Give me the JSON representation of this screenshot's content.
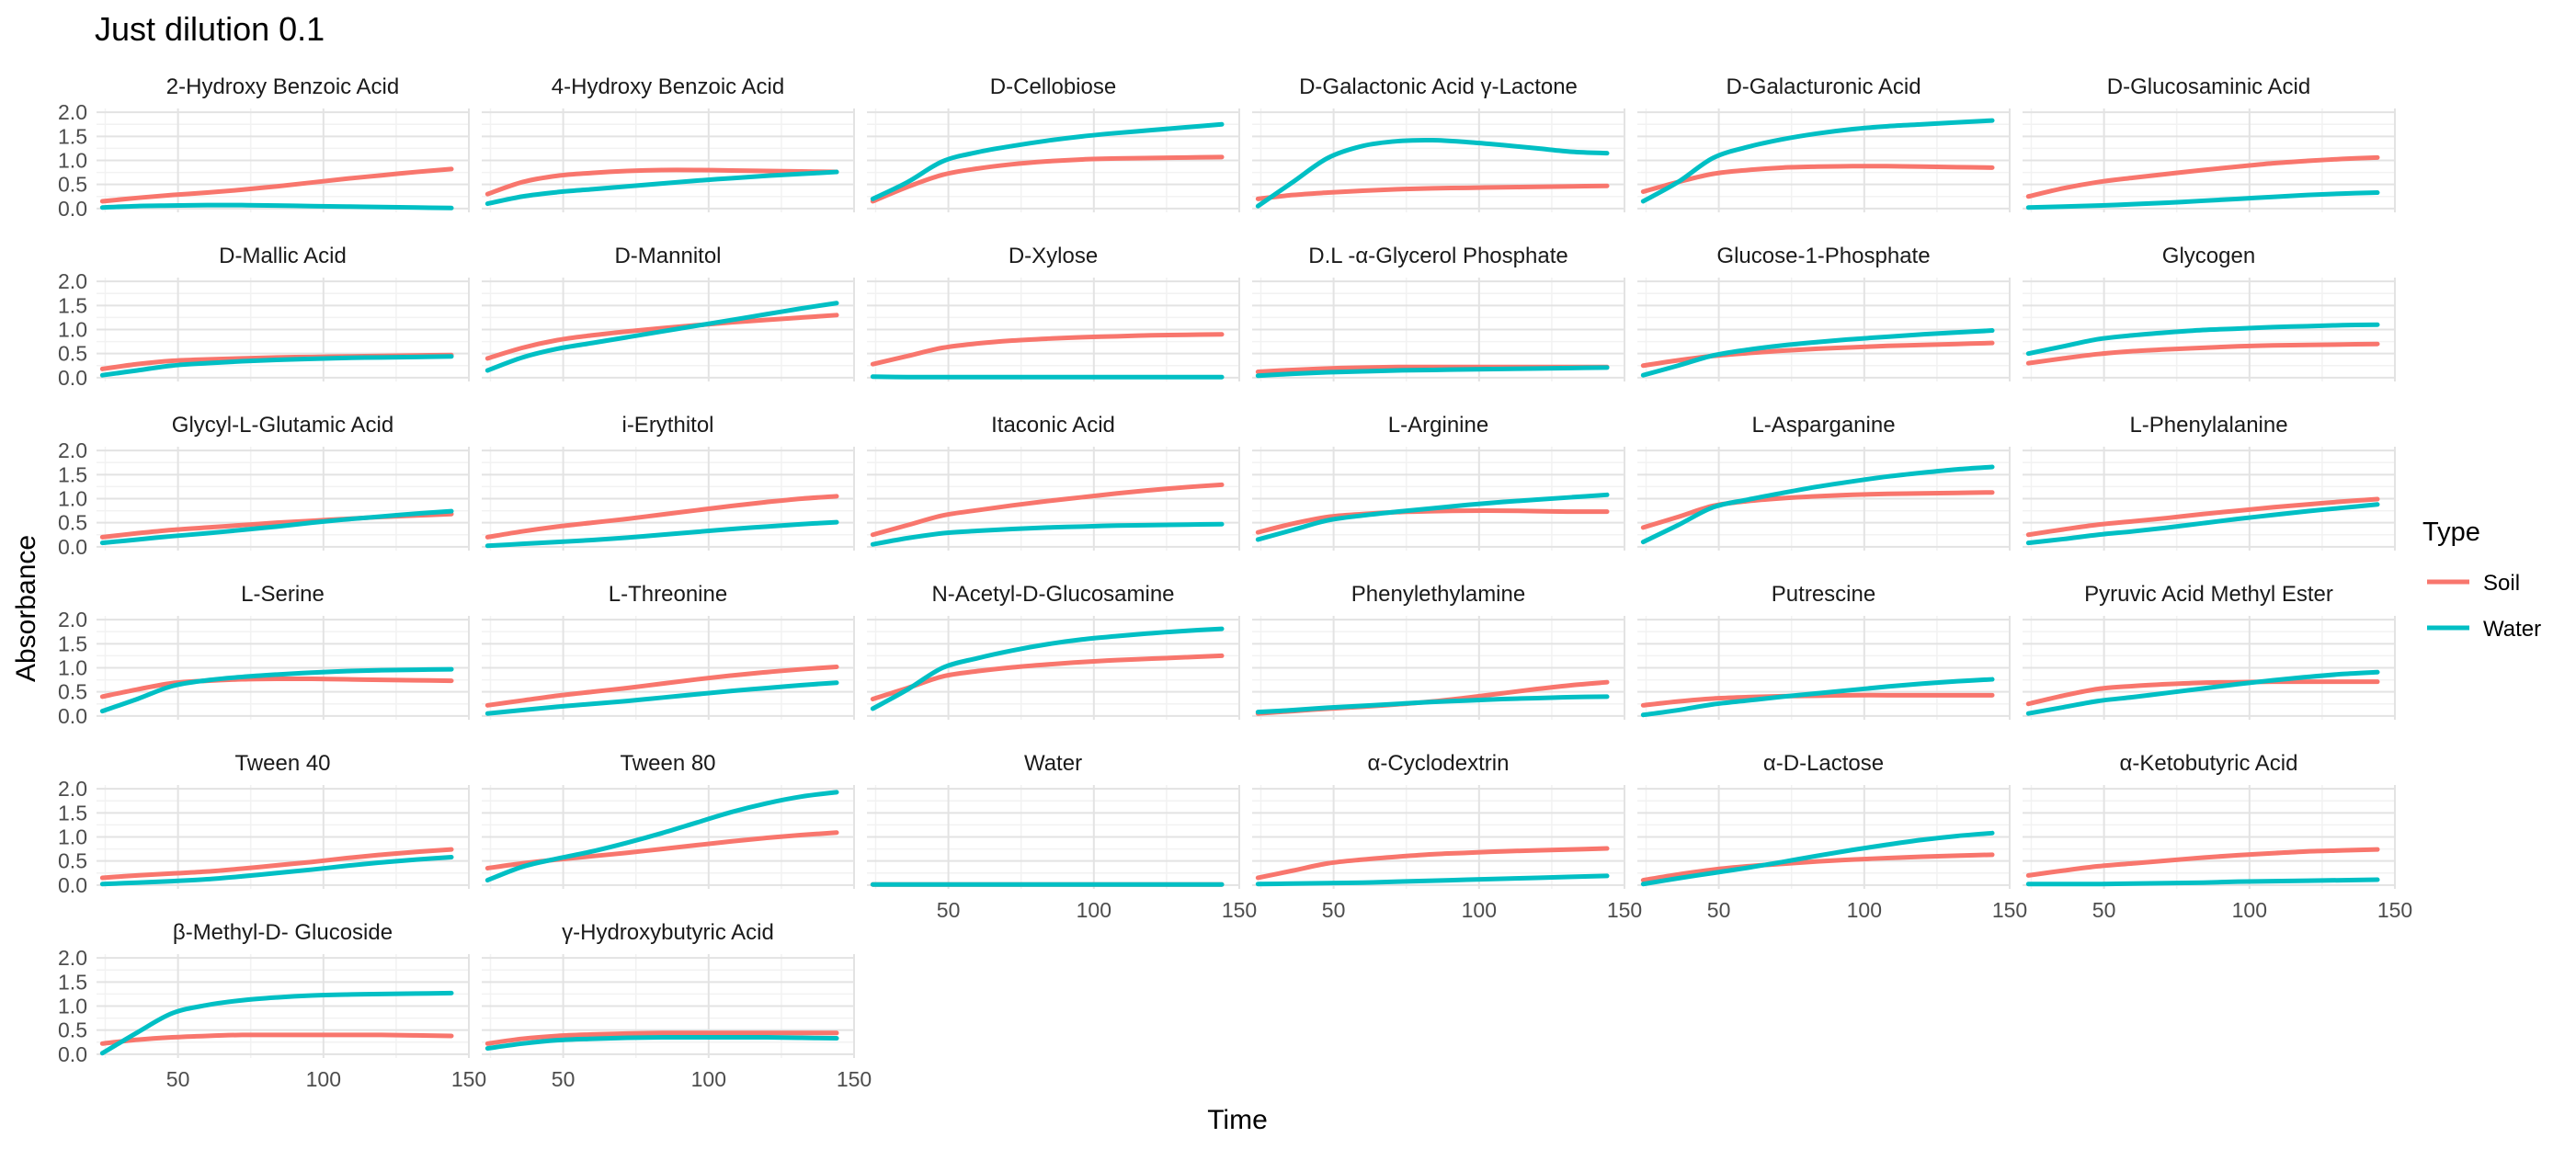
{
  "chart_data": {
    "type": "line",
    "title": "Just dilution 0.1",
    "xlabel": "Time",
    "ylabel": "Absorbance",
    "xlim": [
      22,
      150
    ],
    "ylim": [
      -0.08,
      2.08
    ],
    "x_ticks": [
      50,
      100,
      150
    ],
    "y_ticks": [
      0.0,
      0.5,
      1.0,
      1.5,
      2.0
    ],
    "x_tick_labels": [
      "50",
      "100",
      "150"
    ],
    "y_tick_labels": [
      "0.0",
      "0.5",
      "1.0",
      "1.5",
      "2.0"
    ],
    "x_points": [
      24,
      36,
      48,
      60,
      72,
      84,
      96,
      108,
      120,
      132,
      144
    ],
    "legend": {
      "title": "Type",
      "placement": "right",
      "entries": [
        {
          "name": "Soil",
          "color": "#F8766D"
        },
        {
          "name": "Water",
          "color": "#00BFC4"
        }
      ]
    },
    "grid": true,
    "panels": [
      {
        "title": "2-Hydroxy Benzoic Acid",
        "soil": [
          0.15,
          0.22,
          0.28,
          0.33,
          0.39,
          0.46,
          0.54,
          0.62,
          0.69,
          0.76,
          0.82
        ],
        "water": [
          0.02,
          0.05,
          0.06,
          0.07,
          0.07,
          0.06,
          0.05,
          0.04,
          0.03,
          0.02,
          0.01
        ]
      },
      {
        "title": "4-Hydroxy Benzoic Acid",
        "soil": [
          0.3,
          0.55,
          0.68,
          0.74,
          0.78,
          0.8,
          0.8,
          0.79,
          0.78,
          0.77,
          0.76
        ],
        "water": [
          0.1,
          0.25,
          0.34,
          0.4,
          0.46,
          0.52,
          0.58,
          0.63,
          0.68,
          0.72,
          0.76
        ]
      },
      {
        "title": "D-Cellobiose",
        "soil": [
          0.15,
          0.45,
          0.7,
          0.83,
          0.92,
          0.98,
          1.02,
          1.04,
          1.05,
          1.06,
          1.07
        ],
        "water": [
          0.2,
          0.55,
          0.98,
          1.17,
          1.3,
          1.41,
          1.5,
          1.57,
          1.63,
          1.69,
          1.75
        ]
      },
      {
        "title": "D-Galactonic Acid γ-Lactone",
        "soil": [
          0.2,
          0.28,
          0.33,
          0.37,
          0.4,
          0.42,
          0.43,
          0.44,
          0.45,
          0.46,
          0.47
        ],
        "water": [
          0.05,
          0.55,
          1.05,
          1.3,
          1.4,
          1.42,
          1.38,
          1.32,
          1.25,
          1.18,
          1.15
        ]
      },
      {
        "title": "D-Galacturonic Acid",
        "soil": [
          0.35,
          0.55,
          0.72,
          0.8,
          0.85,
          0.87,
          0.88,
          0.88,
          0.87,
          0.86,
          0.85
        ],
        "water": [
          0.15,
          0.55,
          1.05,
          1.28,
          1.44,
          1.56,
          1.65,
          1.71,
          1.75,
          1.79,
          1.83
        ]
      },
      {
        "title": "D-Glucosaminic Acid",
        "soil": [
          0.25,
          0.42,
          0.55,
          0.64,
          0.72,
          0.8,
          0.87,
          0.94,
          0.99,
          1.03,
          1.06
        ],
        "water": [
          0.02,
          0.04,
          0.06,
          0.09,
          0.12,
          0.16,
          0.2,
          0.24,
          0.28,
          0.31,
          0.33
        ]
      },
      {
        "title": "D-Mallic Acid",
        "soil": [
          0.18,
          0.28,
          0.35,
          0.38,
          0.4,
          0.42,
          0.43,
          0.44,
          0.45,
          0.46,
          0.47
        ],
        "water": [
          0.05,
          0.15,
          0.25,
          0.3,
          0.34,
          0.37,
          0.39,
          0.41,
          0.42,
          0.43,
          0.44
        ]
      },
      {
        "title": "D-Mannitol",
        "soil": [
          0.4,
          0.62,
          0.78,
          0.88,
          0.96,
          1.03,
          1.09,
          1.15,
          1.2,
          1.25,
          1.3
        ],
        "water": [
          0.15,
          0.42,
          0.6,
          0.72,
          0.84,
          0.96,
          1.08,
          1.2,
          1.32,
          1.44,
          1.55
        ]
      },
      {
        "title": "D-Xylose",
        "soil": [
          0.28,
          0.45,
          0.62,
          0.71,
          0.77,
          0.81,
          0.84,
          0.86,
          0.88,
          0.89,
          0.9
        ],
        "water": [
          0.02,
          0.01,
          0.01,
          0.01,
          0.01,
          0.01,
          0.01,
          0.01,
          0.01,
          0.01,
          0.01
        ]
      },
      {
        "title": "D.L -α-Glycerol Phosphate",
        "soil": [
          0.12,
          0.16,
          0.19,
          0.21,
          0.22,
          0.22,
          0.22,
          0.22,
          0.22,
          0.22,
          0.22
        ],
        "water": [
          0.04,
          0.08,
          0.11,
          0.13,
          0.15,
          0.16,
          0.17,
          0.18,
          0.19,
          0.2,
          0.21
        ]
      },
      {
        "title": "Glucose-1-Phosphate",
        "soil": [
          0.25,
          0.36,
          0.45,
          0.51,
          0.56,
          0.6,
          0.63,
          0.66,
          0.68,
          0.7,
          0.72
        ],
        "water": [
          0.05,
          0.25,
          0.46,
          0.58,
          0.67,
          0.74,
          0.8,
          0.85,
          0.9,
          0.94,
          0.98
        ]
      },
      {
        "title": "Glycogen",
        "soil": [
          0.3,
          0.4,
          0.49,
          0.55,
          0.59,
          0.62,
          0.65,
          0.67,
          0.68,
          0.69,
          0.7
        ],
        "water": [
          0.5,
          0.65,
          0.8,
          0.88,
          0.94,
          0.99,
          1.02,
          1.05,
          1.07,
          1.09,
          1.1
        ]
      },
      {
        "title": "Glycyl-L-Glutamic Acid",
        "soil": [
          0.2,
          0.28,
          0.35,
          0.4,
          0.45,
          0.5,
          0.54,
          0.58,
          0.62,
          0.65,
          0.68
        ],
        "water": [
          0.08,
          0.15,
          0.22,
          0.28,
          0.35,
          0.42,
          0.5,
          0.57,
          0.63,
          0.69,
          0.74
        ]
      },
      {
        "title": "i-Erythitol",
        "soil": [
          0.2,
          0.32,
          0.42,
          0.5,
          0.58,
          0.67,
          0.76,
          0.85,
          0.93,
          1.0,
          1.05
        ],
        "water": [
          0.02,
          0.06,
          0.1,
          0.14,
          0.19,
          0.25,
          0.31,
          0.37,
          0.42,
          0.47,
          0.51
        ]
      },
      {
        "title": "Itaconic Acid",
        "soil": [
          0.25,
          0.45,
          0.65,
          0.76,
          0.86,
          0.95,
          1.03,
          1.11,
          1.18,
          1.24,
          1.29
        ],
        "water": [
          0.05,
          0.18,
          0.28,
          0.33,
          0.37,
          0.4,
          0.42,
          0.44,
          0.45,
          0.46,
          0.47
        ]
      },
      {
        "title": "L-Arginine",
        "soil": [
          0.3,
          0.48,
          0.62,
          0.68,
          0.72,
          0.74,
          0.75,
          0.75,
          0.74,
          0.73,
          0.73
        ],
        "water": [
          0.15,
          0.35,
          0.55,
          0.65,
          0.73,
          0.8,
          0.87,
          0.93,
          0.98,
          1.03,
          1.08
        ]
      },
      {
        "title": "L-Asparganine",
        "soil": [
          0.4,
          0.62,
          0.85,
          0.95,
          1.01,
          1.05,
          1.08,
          1.1,
          1.11,
          1.12,
          1.13
        ],
        "water": [
          0.1,
          0.45,
          0.82,
          0.98,
          1.12,
          1.25,
          1.36,
          1.46,
          1.54,
          1.61,
          1.66
        ]
      },
      {
        "title": "L-Phenylalanine",
        "soil": [
          0.25,
          0.36,
          0.46,
          0.53,
          0.6,
          0.68,
          0.75,
          0.82,
          0.88,
          0.94,
          0.99
        ],
        "water": [
          0.08,
          0.16,
          0.25,
          0.32,
          0.4,
          0.49,
          0.58,
          0.66,
          0.74,
          0.81,
          0.88
        ]
      },
      {
        "title": "L-Serine",
        "soil": [
          0.4,
          0.55,
          0.68,
          0.73,
          0.76,
          0.77,
          0.77,
          0.76,
          0.75,
          0.74,
          0.73
        ],
        "water": [
          0.1,
          0.35,
          0.62,
          0.74,
          0.81,
          0.86,
          0.9,
          0.93,
          0.95,
          0.96,
          0.97
        ]
      },
      {
        "title": "L-Threonine",
        "soil": [
          0.22,
          0.32,
          0.42,
          0.5,
          0.58,
          0.67,
          0.76,
          0.84,
          0.91,
          0.97,
          1.02
        ],
        "water": [
          0.05,
          0.12,
          0.19,
          0.25,
          0.31,
          0.38,
          0.45,
          0.52,
          0.58,
          0.64,
          0.69
        ]
      },
      {
        "title": "N-Acetyl-D-Glucosamine",
        "soil": [
          0.35,
          0.58,
          0.82,
          0.93,
          1.01,
          1.07,
          1.12,
          1.16,
          1.19,
          1.22,
          1.25
        ],
        "water": [
          0.15,
          0.55,
          1.0,
          1.2,
          1.36,
          1.49,
          1.59,
          1.66,
          1.72,
          1.77,
          1.81
        ]
      },
      {
        "title": "Phenylethylamine",
        "soil": [
          0.05,
          0.1,
          0.15,
          0.19,
          0.24,
          0.3,
          0.38,
          0.47,
          0.56,
          0.64,
          0.7
        ],
        "water": [
          0.08,
          0.12,
          0.17,
          0.21,
          0.25,
          0.29,
          0.32,
          0.35,
          0.37,
          0.39,
          0.4
        ]
      },
      {
        "title": "Putrescine",
        "soil": [
          0.22,
          0.3,
          0.36,
          0.39,
          0.41,
          0.42,
          0.43,
          0.43,
          0.43,
          0.43,
          0.43
        ],
        "water": [
          0.02,
          0.12,
          0.24,
          0.32,
          0.4,
          0.47,
          0.54,
          0.61,
          0.67,
          0.72,
          0.76
        ]
      },
      {
        "title": "Pyruvic Acid Methyl Ester",
        "soil": [
          0.25,
          0.42,
          0.56,
          0.62,
          0.66,
          0.69,
          0.7,
          0.71,
          0.71,
          0.71,
          0.71
        ],
        "water": [
          0.05,
          0.18,
          0.31,
          0.39,
          0.48,
          0.57,
          0.66,
          0.74,
          0.81,
          0.87,
          0.91
        ]
      },
      {
        "title": "Tween 40",
        "soil": [
          0.15,
          0.2,
          0.24,
          0.28,
          0.34,
          0.41,
          0.48,
          0.56,
          0.63,
          0.69,
          0.74
        ],
        "water": [
          0.02,
          0.05,
          0.08,
          0.12,
          0.18,
          0.25,
          0.32,
          0.4,
          0.47,
          0.53,
          0.58
        ]
      },
      {
        "title": "Tween 80",
        "soil": [
          0.35,
          0.45,
          0.53,
          0.6,
          0.67,
          0.75,
          0.83,
          0.91,
          0.98,
          1.04,
          1.09
        ],
        "water": [
          0.1,
          0.38,
          0.55,
          0.7,
          0.88,
          1.08,
          1.3,
          1.52,
          1.7,
          1.84,
          1.93
        ]
      },
      {
        "title": "Water",
        "soil": [
          0.01,
          0.01,
          0.01,
          0.01,
          0.01,
          0.01,
          0.01,
          0.01,
          0.01,
          0.01,
          0.01
        ],
        "water": [
          0.01,
          0.01,
          0.01,
          0.01,
          0.01,
          0.01,
          0.01,
          0.01,
          0.01,
          0.01,
          0.01
        ]
      },
      {
        "title": "α-Cyclodextrin",
        "soil": [
          0.15,
          0.3,
          0.45,
          0.53,
          0.59,
          0.64,
          0.67,
          0.7,
          0.72,
          0.74,
          0.76
        ],
        "water": [
          0.02,
          0.03,
          0.04,
          0.05,
          0.07,
          0.09,
          0.11,
          0.13,
          0.15,
          0.17,
          0.19
        ]
      },
      {
        "title": "α-D-Lactose",
        "soil": [
          0.1,
          0.22,
          0.32,
          0.39,
          0.44,
          0.49,
          0.53,
          0.56,
          0.59,
          0.61,
          0.63
        ],
        "water": [
          0.02,
          0.14,
          0.25,
          0.36,
          0.48,
          0.61,
          0.73,
          0.84,
          0.94,
          1.02,
          1.08
        ]
      },
      {
        "title": "α-Ketobutyric Acid",
        "soil": [
          0.2,
          0.3,
          0.39,
          0.45,
          0.51,
          0.57,
          0.62,
          0.66,
          0.7,
          0.72,
          0.74
        ],
        "water": [
          0.02,
          0.02,
          0.02,
          0.03,
          0.04,
          0.05,
          0.07,
          0.08,
          0.09,
          0.1,
          0.11
        ]
      },
      {
        "title": "β-Methyl-D- Glucoside",
        "soil": [
          0.22,
          0.3,
          0.35,
          0.38,
          0.4,
          0.4,
          0.4,
          0.4,
          0.4,
          0.39,
          0.38
        ],
        "water": [
          0.02,
          0.45,
          0.85,
          1.02,
          1.12,
          1.18,
          1.22,
          1.24,
          1.25,
          1.26,
          1.27
        ]
      },
      {
        "title": "γ-Hydroxybutyric Acid",
        "soil": [
          0.22,
          0.32,
          0.38,
          0.41,
          0.43,
          0.44,
          0.44,
          0.44,
          0.44,
          0.44,
          0.44
        ],
        "water": [
          0.12,
          0.22,
          0.29,
          0.32,
          0.34,
          0.35,
          0.35,
          0.35,
          0.35,
          0.34,
          0.33
        ]
      }
    ]
  }
}
